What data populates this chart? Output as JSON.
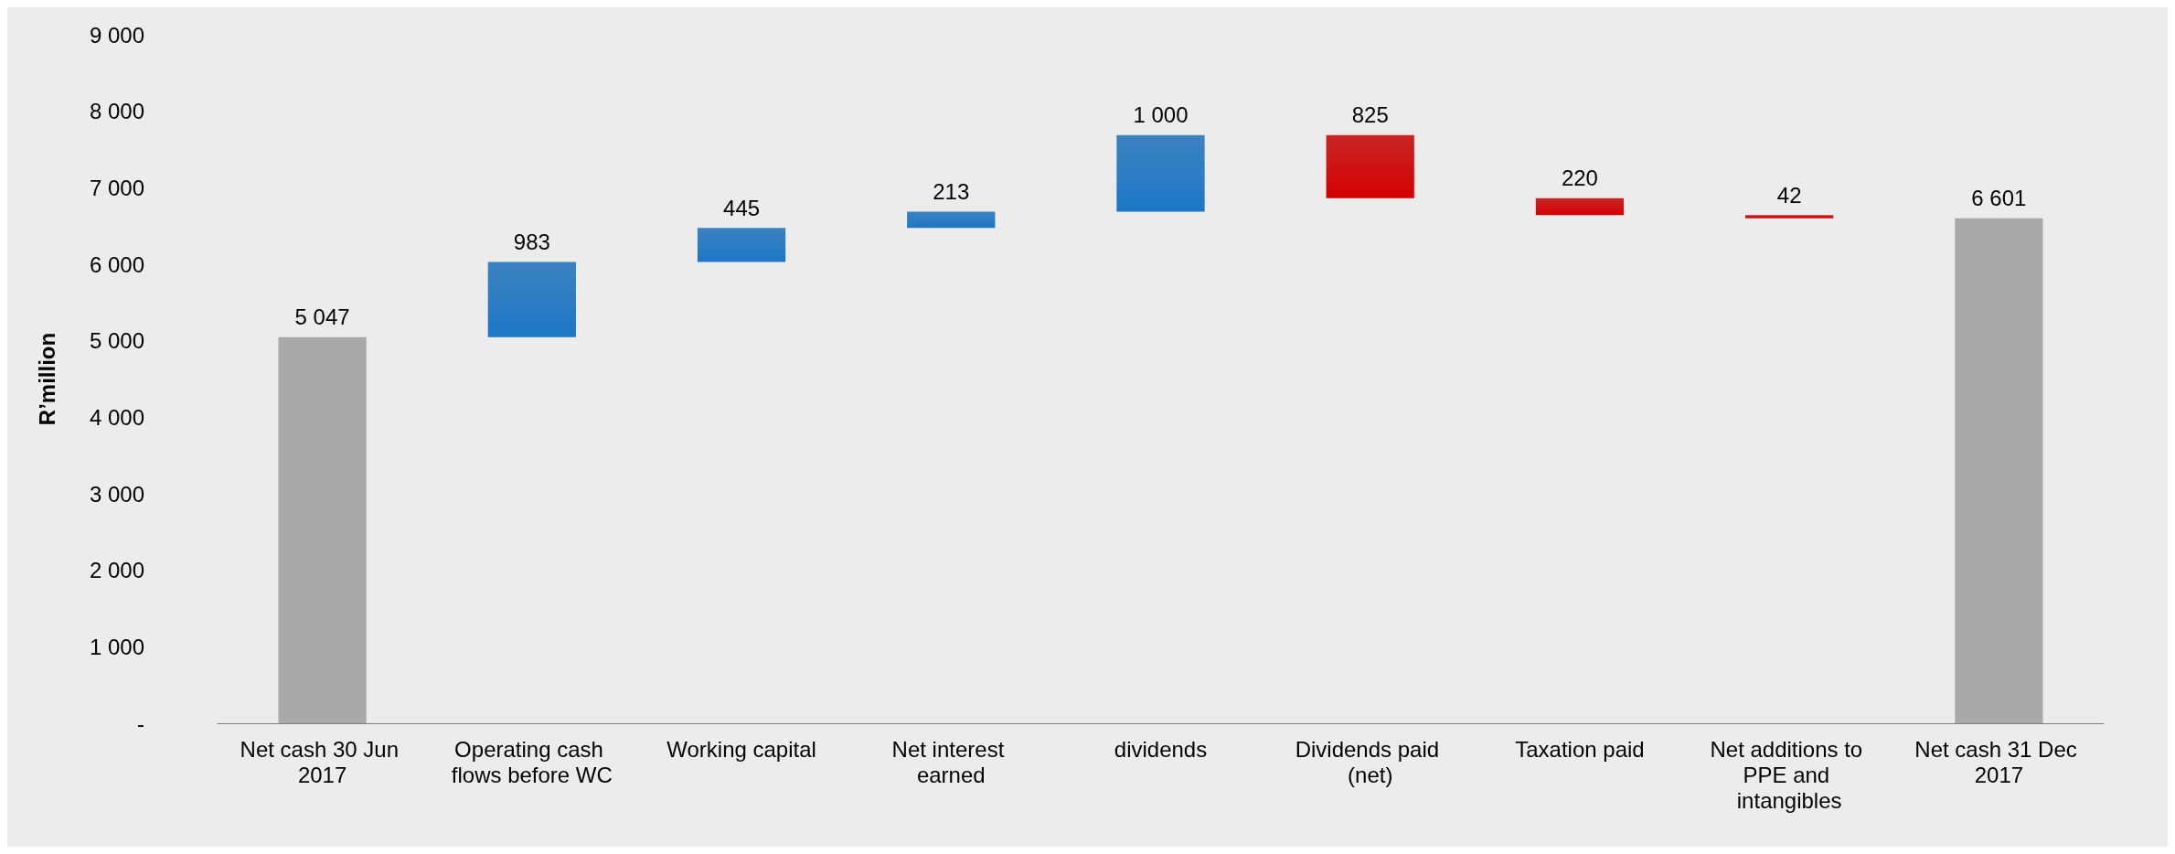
{
  "chart_data": {
    "type": "bar",
    "ylabel": "R’million",
    "categories": [
      "Net cash 30 Jun 2017",
      "Operating cash flows before WC",
      "Working capital",
      "Net interest earned",
      "dividends",
      "Dividends paid (net)",
      "Taxation paid",
      "Net additions to PPE and intangibles",
      "Net cash 31 Dec 2017"
    ],
    "values": [
      5047,
      983,
      445,
      213,
      1000,
      825,
      220,
      42,
      6601
    ],
    "base": [
      0,
      5047,
      6030,
      6475,
      6688,
      6863,
      6643,
      6601,
      0
    ],
    "colors": [
      "#9a9a9a",
      "#1a6db5",
      "#1a6db5",
      "#1a6db5",
      "#1a6db5",
      "#c00000",
      "#c00000",
      "#c00000",
      "#9a9a9a"
    ],
    "value_labels": [
      "5 047",
      "983",
      "445",
      "213",
      "1 000",
      "825",
      "220",
      "42",
      "6 601"
    ],
    "ylim": [
      0,
      9000
    ],
    "yticks": [
      {
        "value": 0,
        "label": "-"
      },
      {
        "value": 1000,
        "label": "1 000"
      },
      {
        "value": 2000,
        "label": "2 000"
      },
      {
        "value": 3000,
        "label": "3 000"
      },
      {
        "value": 4000,
        "label": "4 000"
      },
      {
        "value": 5000,
        "label": "5 000"
      },
      {
        "value": 6000,
        "label": "6 000"
      },
      {
        "value": 7000,
        "label": "7 000"
      },
      {
        "value": 8000,
        "label": "8 000"
      },
      {
        "value": 9000,
        "label": "9 000"
      }
    ],
    "grid": false
  }
}
